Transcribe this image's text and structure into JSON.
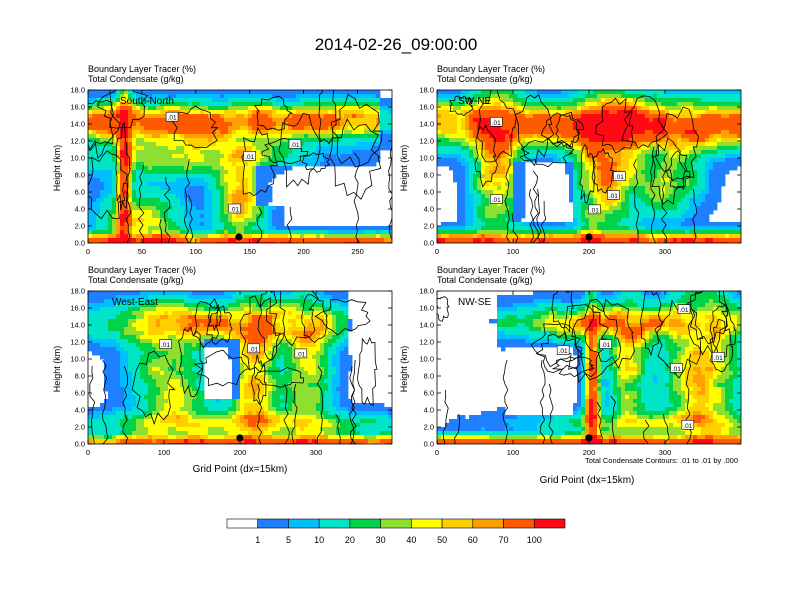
{
  "title": "2014-02-26_09:00:00",
  "chart_data": [
    {
      "type": "heatmap",
      "cross_section": "South-North",
      "subtitle_line1": "Boundary Layer Tracer    (%)",
      "subtitle_line2": "Total Condensate   (g/kg)",
      "ylabel": "Height (km)",
      "xlabel": "",
      "yticks": [
        "0.0",
        "2.0",
        "4.0",
        "6.0",
        "8.0",
        "10.0",
        "12.0",
        "14.0",
        "16.0",
        "18.0"
      ],
      "ylim": [
        0,
        18
      ],
      "xlim": [
        0,
        282
      ],
      "xticks": [
        0,
        50,
        100,
        150,
        200,
        250
      ],
      "marker_x": 140,
      "contour_labels": [
        {
          "text": ".01",
          "x": 78,
          "y": 14.8
        },
        {
          "text": ".01",
          "x": 150,
          "y": 10.2
        },
        {
          "text": ".01",
          "x": 192,
          "y": 11.6
        },
        {
          "text": ".01",
          "x": 136,
          "y": 4.0
        }
      ]
    },
    {
      "type": "heatmap",
      "cross_section": "SW-NE",
      "subtitle_line1": "Boundary Layer Tracer    (%)",
      "subtitle_line2": "Total Condensate   (g/kg)",
      "ylabel": "Height (km)",
      "xlabel": "",
      "yticks": [
        "0.0",
        "2.0",
        "4.0",
        "6.0",
        "8.0",
        "10.0",
        "12.0",
        "14.0",
        "16.0",
        "18.0"
      ],
      "ylim": [
        0,
        18
      ],
      "xlim": [
        0,
        400
      ],
      "xticks": [
        0,
        100,
        200,
        300
      ],
      "marker_x": 200,
      "contour_labels": [
        {
          "text": ".01",
          "x": 78,
          "y": 14.2
        },
        {
          "text": ".01",
          "x": 240,
          "y": 7.8
        },
        {
          "text": ".01",
          "x": 232,
          "y": 5.6
        },
        {
          "text": ".01",
          "x": 78,
          "y": 5.1
        },
        {
          "text": ".01",
          "x": 207,
          "y": 3.9
        }
      ]
    },
    {
      "type": "heatmap",
      "cross_section": "West-East",
      "subtitle_line1": "Boundary Layer Tracer    (%)",
      "subtitle_line2": "Total Condensate   (g/kg)",
      "ylabel": "Height (km)",
      "xlabel": "Grid Point (dx=15km)",
      "yticks": [
        "0.0",
        "2.0",
        "4.0",
        "6.0",
        "8.0",
        "10.0",
        "12.0",
        "14.0",
        "16.0",
        "18.0"
      ],
      "ylim": [
        0,
        18
      ],
      "xlim": [
        0,
        400
      ],
      "xticks": [
        0,
        100,
        200,
        300
      ],
      "marker_x": 200,
      "contour_labels": [
        {
          "text": ".01",
          "x": 102,
          "y": 11.7
        },
        {
          "text": ".01",
          "x": 218,
          "y": 11.2
        },
        {
          "text": ".01",
          "x": 280,
          "y": 10.6
        }
      ]
    },
    {
      "type": "heatmap",
      "cross_section": "NW-SE",
      "subtitle_line1": "Boundary Layer Tracer    (%)",
      "subtitle_line2": "Total Condensate   (g/kg)",
      "ylabel": "Height (km)",
      "xlabel": "Grid Point (dx=15km)",
      "yticks": [
        "0.0",
        "2.0",
        "4.0",
        "6.0",
        "8.0",
        "10.0",
        "12.0",
        "14.0",
        "16.0",
        "18.0"
      ],
      "ylim": [
        0,
        18
      ],
      "xlim": [
        0,
        400
      ],
      "xticks": [
        0,
        100,
        200,
        300
      ],
      "marker_x": 200,
      "contour_labels": [
        {
          "text": ".01",
          "x": 325,
          "y": 15.8
        },
        {
          "text": ".01",
          "x": 166,
          "y": 11.0
        },
        {
          "text": ".01",
          "x": 222,
          "y": 11.7
        },
        {
          "text": ".01",
          "x": 370,
          "y": 10.2
        },
        {
          "text": ".01",
          "x": 315,
          "y": 8.9
        },
        {
          "text": ".01",
          "x": 330,
          "y": 2.2
        }
      ]
    }
  ],
  "contour_note": "Total Condensate Contours: .01 to .01 by .000",
  "colorbar": {
    "labels": [
      "1",
      "5",
      "10",
      "20",
      "30",
      "40",
      "50",
      "60",
      "70",
      "100"
    ],
    "colors": [
      "#ffffff",
      "#1e7fff",
      "#00bfff",
      "#00e5c8",
      "#00d24a",
      "#8ee030",
      "#ffff00",
      "#ffd000",
      "#ffa000",
      "#ff5a00",
      "#ff0a14"
    ]
  }
}
